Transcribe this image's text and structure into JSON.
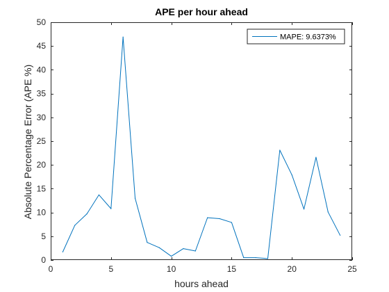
{
  "chart_data": {
    "type": "line",
    "title": "APE per hour ahead",
    "xlabel": "hours ahead",
    "ylabel": "Absolute Percentage Error (APE %)",
    "xlim": [
      0,
      25
    ],
    "ylim": [
      0,
      50
    ],
    "xticks": [
      "0",
      "5",
      "10",
      "15",
      "20",
      "25"
    ],
    "yticks": [
      "0",
      "5",
      "10",
      "15",
      "20",
      "25",
      "30",
      "35",
      "40",
      "45",
      "50"
    ],
    "grid": false,
    "legend_position": "top-right",
    "series": [
      {
        "name": "MAPE: 9.6373%",
        "color": "#0072BD",
        "x": [
          1,
          2,
          3,
          4,
          5,
          6,
          7,
          8,
          9,
          10,
          11,
          12,
          13,
          14,
          15,
          16,
          17,
          18,
          19,
          20,
          21,
          22,
          23,
          24
        ],
        "values": [
          1.7,
          7.3,
          9.7,
          13.7,
          10.8,
          46.9,
          13.0,
          3.7,
          2.6,
          0.8,
          2.4,
          1.9,
          8.9,
          8.7,
          7.9,
          0.5,
          0.5,
          0.3,
          23.1,
          17.9,
          10.7,
          21.6,
          10.1,
          5.2
        ]
      }
    ]
  }
}
